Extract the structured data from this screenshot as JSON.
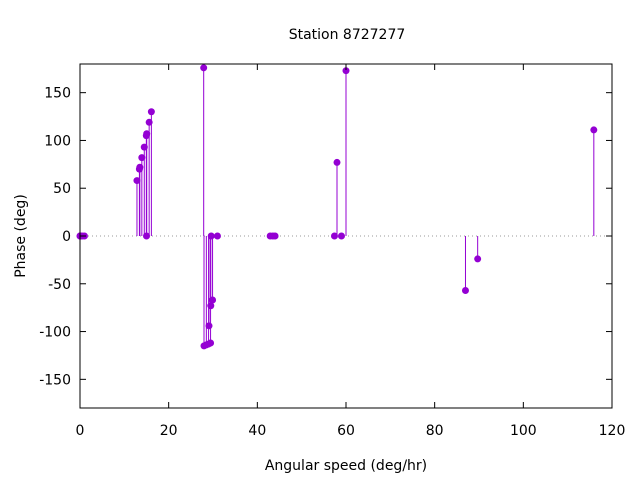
{
  "chart_data": {
    "type": "stem",
    "title": "Station 8727277",
    "xlabel": "Angular speed (deg/hr)",
    "ylabel": "Phase (deg)",
    "xlim": [
      0,
      120
    ],
    "ylim": [
      -180,
      180
    ],
    "xticks": [
      "0",
      "20",
      "40",
      "60",
      "80",
      "100",
      "120"
    ],
    "yticks": [
      "150",
      "100",
      "50",
      "0",
      "-50",
      "-100",
      "-150"
    ],
    "xtick_values": [
      0,
      20,
      40,
      60,
      80,
      100,
      120
    ],
    "ytick_values": [
      150,
      100,
      50,
      0,
      -50,
      -100,
      -150
    ],
    "zero_line": "dotted",
    "grid": false,
    "color": "#9400d3",
    "series": [
      {
        "points": [
          [
            0.0,
            0
          ],
          [
            0.04,
            0
          ],
          [
            0.08,
            0
          ],
          [
            0.5,
            0
          ],
          [
            1.0,
            0
          ],
          [
            12.85,
            58
          ],
          [
            13.4,
            70
          ],
          [
            13.5,
            72
          ],
          [
            13.95,
            82
          ],
          [
            14.5,
            93
          ],
          [
            14.96,
            105
          ],
          [
            15.05,
            107
          ],
          [
            15.0,
            0
          ],
          [
            15.6,
            119
          ],
          [
            16.1,
            130
          ],
          [
            27.9,
            176
          ],
          [
            27.97,
            -115
          ],
          [
            28.5,
            -114
          ],
          [
            29.0,
            -113
          ],
          [
            29.45,
            -112
          ],
          [
            29.1,
            -94
          ],
          [
            29.5,
            -73
          ],
          [
            29.9,
            -67
          ],
          [
            29.6,
            0
          ],
          [
            31.0,
            0
          ],
          [
            42.9,
            0
          ],
          [
            43.5,
            0
          ],
          [
            44.0,
            0
          ],
          [
            57.4,
            0
          ],
          [
            57.97,
            77
          ],
          [
            58.98,
            0
          ],
          [
            60.0,
            173
          ],
          [
            86.95,
            -57
          ],
          [
            89.7,
            -24
          ],
          [
            115.9,
            111
          ]
        ]
      }
    ]
  }
}
